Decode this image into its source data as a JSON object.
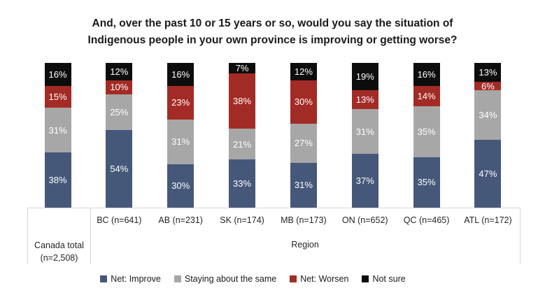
{
  "title": {
    "line1": "And, over the past 10 or 15 years or so, would you say the situation of",
    "line2": "Indigenous people in your own province is improving or getting worse?"
  },
  "axis": {
    "canada_line1": "Canada total",
    "canada_line2": "(n=2,508)",
    "region_label": "Region"
  },
  "chart_data": {
    "type": "bar",
    "stacked": true,
    "title": "And, over the past 10 or 15 years or so, would you say the situation of Indigenous people in your own province is improving or getting worse?",
    "categories": [
      "Canada total (n=2,508)",
      "BC (n=641)",
      "AB (n=231)",
      "SK (n=174)",
      "MB (n=173)",
      "ON (n=652)",
      "QC (n=465)",
      "ATL (n=172)"
    ],
    "series": [
      {
        "name": "Net: Improve",
        "color": "#46587a",
        "values": [
          38,
          54,
          30,
          33,
          31,
          37,
          35,
          47
        ]
      },
      {
        "name": "Staying about the same",
        "color": "#a7a7a7",
        "values": [
          31,
          25,
          31,
          21,
          27,
          31,
          35,
          34
        ]
      },
      {
        "name": "Net: Worsen",
        "color": "#a32b25",
        "values": [
          15,
          10,
          23,
          38,
          30,
          13,
          14,
          6
        ]
      },
      {
        "name": "Not sure",
        "color": "#0d0d0d",
        "values": [
          16,
          12,
          16,
          7,
          12,
          19,
          16,
          13
        ]
      }
    ],
    "xlabel": "Region",
    "ylim": [
      0,
      100
    ],
    "value_suffix": "%",
    "value_label_color": "#ffffff",
    "legend_position": "bottom",
    "grid": false
  }
}
